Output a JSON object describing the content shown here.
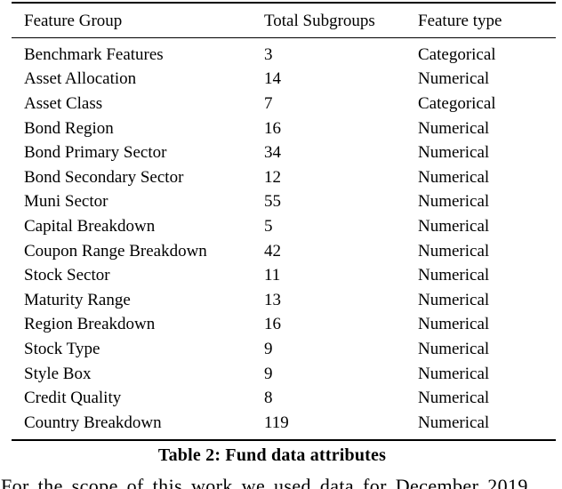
{
  "colors": {
    "background": "#ffffff",
    "text": "#000000",
    "rule": "#000000"
  },
  "table": {
    "caption": "Table 2: Fund data attributes",
    "columns": [
      "Feature Group",
      "Total Subgroups",
      "Feature type"
    ],
    "rows": [
      {
        "feature_group": "Benchmark Features",
        "total_subgroups": "3",
        "feature_type": "Categorical"
      },
      {
        "feature_group": "Asset Allocation",
        "total_subgroups": "14",
        "feature_type": "Numerical"
      },
      {
        "feature_group": "Asset Class",
        "total_subgroups": "7",
        "feature_type": "Categorical"
      },
      {
        "feature_group": "Bond Region",
        "total_subgroups": "16",
        "feature_type": "Numerical"
      },
      {
        "feature_group": "Bond Primary Sector",
        "total_subgroups": "34",
        "feature_type": "Numerical"
      },
      {
        "feature_group": "Bond Secondary Sector",
        "total_subgroups": "12",
        "feature_type": "Numerical"
      },
      {
        "feature_group": "Muni Sector",
        "total_subgroups": "55",
        "feature_type": "Numerical"
      },
      {
        "feature_group": "Capital Breakdown",
        "total_subgroups": "5",
        "feature_type": "Numerical"
      },
      {
        "feature_group": "Coupon Range Breakdown",
        "total_subgroups": "42",
        "feature_type": "Numerical"
      },
      {
        "feature_group": "Stock Sector",
        "total_subgroups": "11",
        "feature_type": "Numerical"
      },
      {
        "feature_group": "Maturity Range",
        "total_subgroups": "13",
        "feature_type": "Numerical"
      },
      {
        "feature_group": "Region Breakdown",
        "total_subgroups": "16",
        "feature_type": "Numerical"
      },
      {
        "feature_group": "Stock Type",
        "total_subgroups": "9",
        "feature_type": "Numerical"
      },
      {
        "feature_group": "Style Box",
        "total_subgroups": "9",
        "feature_type": "Numerical"
      },
      {
        "feature_group": "Credit Quality",
        "total_subgroups": "8",
        "feature_type": "Numerical"
      },
      {
        "feature_group": "Country Breakdown",
        "total_subgroups": "119",
        "feature_type": "Numerical"
      }
    ]
  },
  "body_text": {
    "partial_paragraph": "For the scope of this work we used data for December 2019"
  }
}
